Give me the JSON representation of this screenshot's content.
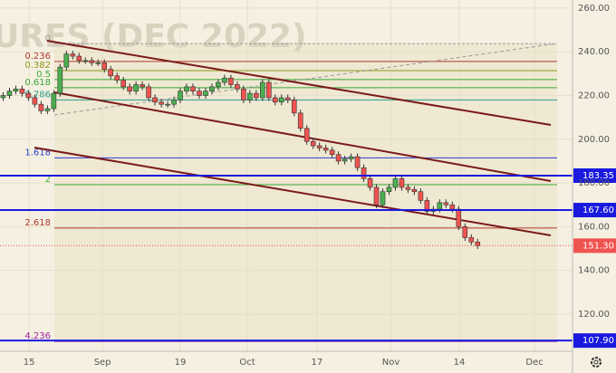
{
  "chart_data": {
    "type": "candlestick",
    "watermark": "URES (DEC 2022)",
    "open": [
      219,
      220,
      222,
      223,
      221,
      219,
      216,
      213,
      214,
      221,
      233,
      239,
      238,
      236,
      236,
      235,
      235,
      232,
      229,
      227,
      224,
      222,
      225,
      224,
      219,
      217,
      216,
      216,
      218,
      222,
      224,
      222,
      220,
      222,
      224,
      226,
      228,
      225,
      223,
      218,
      221,
      219,
      226,
      219,
      217,
      219,
      218,
      212,
      205,
      199,
      197,
      196,
      195,
      193,
      190,
      191,
      192,
      187,
      182,
      178,
      170,
      176,
      178,
      182,
      178,
      177,
      176,
      172,
      167,
      168,
      171,
      170,
      168,
      160,
      155,
      153
    ],
    "high": [
      221.5,
      223.5,
      224.5,
      224.5,
      222.5,
      220.5,
      217.5,
      215.5,
      222.5,
      234.5,
      240.5,
      240.5,
      239.5,
      237.5,
      237.5,
      236.5,
      236.5,
      233.5,
      230.5,
      228.5,
      225.5,
      226.5,
      226.5,
      225.5,
      220.5,
      218.5,
      217.5,
      219.5,
      223.5,
      225.5,
      225.5,
      223.5,
      223.5,
      225.5,
      227.5,
      229.5,
      229.5,
      226.5,
      224.5,
      222.5,
      222.5,
      227.5,
      227.5,
      220.5,
      220.5,
      220.5,
      219.5,
      213.5,
      206.5,
      200.5,
      198.5,
      197.5,
      196.5,
      194.5,
      192.5,
      193.5,
      193.5,
      188.5,
      183.5,
      179.5,
      177.5,
      179.5,
      183.5,
      183.5,
      179.5,
      178.5,
      177.5,
      173.5,
      169.5,
      172.5,
      172.5,
      171.5,
      169.5,
      161.5,
      156.5,
      154.5
    ],
    "low": [
      217.5,
      218.5,
      220.5,
      219.5,
      217.5,
      214.5,
      211.5,
      211.5,
      212.5,
      219.5,
      231.5,
      236.5,
      234.5,
      234.5,
      233.5,
      233.5,
      230.5,
      227.5,
      225.5,
      222.5,
      220.5,
      220.5,
      222.5,
      217.5,
      215.5,
      214.5,
      214.5,
      214.5,
      216.5,
      220.5,
      220.5,
      218.5,
      218.5,
      220.5,
      222.5,
      224.5,
      223.5,
      221.5,
      216.5,
      216.5,
      217.5,
      217.5,
      217.5,
      215.5,
      215.5,
      216.5,
      210.5,
      203.5,
      197.5,
      195.5,
      194.5,
      193.5,
      191.5,
      188.5,
      188.5,
      189.5,
      185.5,
      180.5,
      176.5,
      168.5,
      168.5,
      174.5,
      176.5,
      176.5,
      175.5,
      174.5,
      170.5,
      165.5,
      165.5,
      166.5,
      168.5,
      166.5,
      158.5,
      153.5,
      151.5,
      149.8
    ],
    "close": [
      220,
      222,
      223,
      221,
      219,
      216,
      213,
      214,
      221,
      233,
      239,
      238,
      236,
      236,
      235,
      235,
      232,
      229,
      227,
      224,
      222,
      225,
      224,
      219,
      217,
      216,
      216,
      218,
      222,
      224,
      222,
      220,
      222,
      224,
      226,
      228,
      225,
      223,
      218,
      221,
      219,
      226,
      219,
      217,
      219,
      218,
      212,
      205,
      199,
      197,
      196,
      195,
      193,
      190,
      191,
      192,
      187,
      182,
      178,
      170,
      176,
      178,
      182,
      178,
      177,
      176,
      172,
      167,
      168,
      171,
      170,
      168,
      160,
      155,
      153,
      151.3
    ],
    "up_color": "#4caf50",
    "down_color": "#ef5350",
    "xlim": [
      -0.5,
      90
    ],
    "xticks": [
      {
        "value": 4.1,
        "label": "15"
      },
      {
        "value": 15.7,
        "label": "Sep"
      },
      {
        "value": 28,
        "label": "19"
      },
      {
        "value": 38.6,
        "label": "Oct"
      },
      {
        "value": 49.6,
        "label": "17"
      },
      {
        "value": 61.3,
        "label": "Nov"
      },
      {
        "value": 72.1,
        "label": "14"
      },
      {
        "value": 84,
        "label": "Dec"
      }
    ],
    "ylim": [
      103,
      263.7
    ],
    "yticks": [
      {
        "value": 120,
        "label": "120.00"
      },
      {
        "value": 140,
        "label": "140.00"
      },
      {
        "value": 160,
        "label": "160.00"
      },
      {
        "value": 180,
        "label": "180.00"
      },
      {
        "value": 200,
        "label": "200.00"
      },
      {
        "value": 220,
        "label": "220.00"
      },
      {
        "value": 240,
        "label": "240.00"
      },
      {
        "value": 260,
        "label": "260.00"
      }
    ],
    "fib_levels": [
      {
        "label": "0",
        "value": 243.7,
        "color": "#999999"
      },
      {
        "label": "0.236",
        "value": 235.6,
        "color": "#b03a2e"
      },
      {
        "label": "0.382",
        "value": 231.4,
        "color": "#8f9a1c"
      },
      {
        "label": "0.5",
        "value": 227.3,
        "color": "#3aa83a"
      },
      {
        "label": "0.618",
        "value": 223.6,
        "color": "#3aa83a"
      },
      {
        "label": "0.786",
        "value": 218,
        "color": "#2a9d8f"
      },
      {
        "label": "1.618",
        "value": 191.5,
        "color": "#2b3fcf"
      },
      {
        "label": "2",
        "value": 179.2,
        "color": "#3aa83a"
      },
      {
        "label": "2.618",
        "value": 159.4,
        "color": "#b03a2e"
      },
      {
        "label": "4.236",
        "value": 107.5,
        "color": "#a020a0"
      }
    ],
    "price_levels": [
      {
        "value": 183.35,
        "color": "#1a1adf"
      },
      {
        "value": {
          "value": 167.6,
          "label": "167.60"
        },
        "color": "#1a1adf"
      },
      {
        "value": {
          "value": 107.9,
          "label": "107.90"
        },
        "color": "#1a1adf"
      }
    ],
    "last_price": {
      "value": 151.3,
      "label": "151.30"
    },
    "last_color": "#ef5350"
  }
}
